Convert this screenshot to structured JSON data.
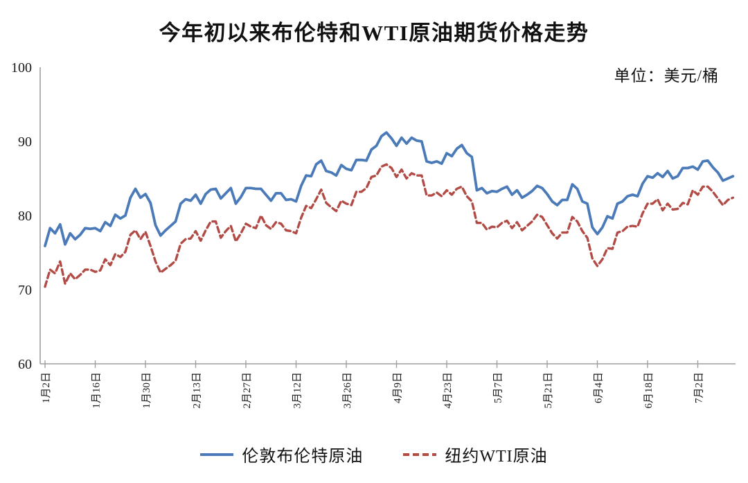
{
  "title": "今年初以来布伦特和WTI原油期货价格走势",
  "unit_label": "单位：美元/桶",
  "colors": {
    "brent_line": "#4a7ab7",
    "wti_line": "#b24b45",
    "axis": "#9e9e9e",
    "text": "#1a1a1a",
    "background": "#ffffff"
  },
  "legend": {
    "brent_label": "伦敦布伦特原油",
    "wti_label": "纽约WTI原油"
  },
  "chart_data": {
    "type": "line",
    "title": "今年初以来布伦特和WTI原油期货价格走势",
    "unit": "美元/桶",
    "xlabel": "",
    "ylabel": "",
    "ylim": [
      60,
      100
    ],
    "y_ticks": [
      100,
      90,
      80,
      70,
      60
    ],
    "grid": false,
    "legend_position": "bottom",
    "x_tick_labels": [
      "1月2日",
      "1月16日",
      "1月30日",
      "2月13日",
      "2月27日",
      "3月12日",
      "3月26日",
      "4月9日",
      "4月23日",
      "5月7日",
      "5月21日",
      "6月4日",
      "6月18日",
      "7月2日"
    ],
    "x_tick_indices": [
      0,
      10,
      20,
      30,
      40,
      50,
      60,
      70,
      80,
      90,
      100,
      110,
      120,
      130
    ],
    "series": [
      {
        "name": "伦敦布伦特原油",
        "style": "solid",
        "color": "#4a7ab7",
        "values": [
          75.9,
          78.3,
          77.6,
          78.8,
          76.1,
          77.6,
          76.8,
          77.4,
          78.3,
          78.2,
          78.3,
          77.9,
          79.1,
          78.6,
          80.1,
          79.6,
          80.0,
          82.4,
          83.6,
          82.4,
          82.9,
          81.7,
          78.7,
          77.3,
          78.0,
          78.6,
          79.2,
          81.6,
          82.2,
          82.0,
          82.8,
          81.6,
          82.9,
          83.5,
          83.6,
          82.3,
          83.0,
          83.7,
          81.6,
          82.5,
          83.7,
          83.7,
          83.6,
          83.6,
          82.8,
          82.0,
          83.0,
          83.0,
          82.1,
          82.2,
          81.9,
          84.0,
          85.4,
          85.3,
          86.9,
          87.4,
          86.0,
          85.8,
          85.4,
          86.8,
          86.3,
          86.1,
          87.5,
          87.5,
          87.4,
          88.9,
          89.4,
          90.7,
          91.2,
          90.4,
          89.4,
          90.5,
          89.7,
          90.5,
          90.1,
          90.0,
          87.3,
          87.1,
          87.3,
          87.0,
          88.4,
          88.0,
          89.0,
          89.5,
          88.4,
          87.9,
          83.4,
          83.7,
          83.0,
          83.3,
          83.2,
          83.6,
          83.9,
          82.8,
          83.4,
          82.4,
          82.8,
          83.3,
          84.0,
          83.7,
          82.9,
          81.9,
          81.4,
          82.1,
          82.1,
          84.2,
          83.6,
          81.9,
          81.6,
          78.4,
          77.5,
          78.4,
          79.9,
          79.6,
          81.6,
          81.9,
          82.6,
          82.8,
          82.6,
          84.3,
          85.3,
          85.1,
          85.7,
          85.2,
          86.0,
          85.0,
          85.3,
          86.4,
          86.4,
          86.6,
          86.2,
          87.3,
          87.4,
          86.5,
          85.8,
          84.7,
          85.0,
          85.3
        ]
      },
      {
        "name": "纽约WTI原油",
        "style": "dashed",
        "color": "#b24b45",
        "values": [
          70.4,
          72.7,
          72.2,
          73.8,
          70.8,
          72.2,
          71.4,
          72.0,
          72.7,
          72.7,
          72.4,
          72.6,
          74.1,
          73.3,
          74.8,
          74.4,
          75.1,
          77.4,
          78.0,
          76.8,
          77.8,
          75.9,
          73.8,
          72.3,
          72.8,
          73.3,
          73.9,
          76.2,
          76.8,
          76.9,
          77.9,
          76.6,
          78.0,
          79.2,
          79.2,
          77.0,
          77.9,
          78.6,
          76.5,
          77.6,
          78.9,
          78.5,
          78.3,
          80.0,
          78.7,
          78.2,
          79.1,
          78.9,
          78.0,
          77.9,
          77.6,
          79.7,
          81.3,
          81.0,
          82.2,
          83.5,
          81.7,
          81.1,
          80.6,
          82.0,
          81.6,
          81.4,
          83.2,
          83.2,
          83.7,
          85.2,
          85.4,
          86.6,
          86.9,
          86.4,
          85.2,
          86.2,
          85.0,
          85.7,
          85.4,
          85.4,
          82.7,
          82.7,
          83.1,
          82.6,
          83.4,
          82.8,
          83.6,
          83.9,
          82.6,
          81.9,
          79.0,
          79.0,
          78.1,
          78.5,
          78.4,
          79.0,
          79.3,
          78.3,
          79.1,
          78.0,
          78.6,
          79.2,
          80.1,
          79.8,
          78.7,
          77.6,
          76.9,
          77.7,
          77.7,
          79.8,
          79.2,
          77.9,
          77.0,
          74.2,
          73.2,
          74.1,
          75.6,
          75.5,
          77.7,
          77.9,
          78.5,
          78.6,
          78.5,
          80.3,
          81.6,
          81.6,
          82.2,
          80.7,
          81.6,
          80.8,
          80.9,
          81.7,
          81.5,
          83.4,
          82.8,
          83.9,
          83.9,
          83.2,
          82.3,
          81.4,
          82.1,
          82.4
        ]
      }
    ]
  }
}
